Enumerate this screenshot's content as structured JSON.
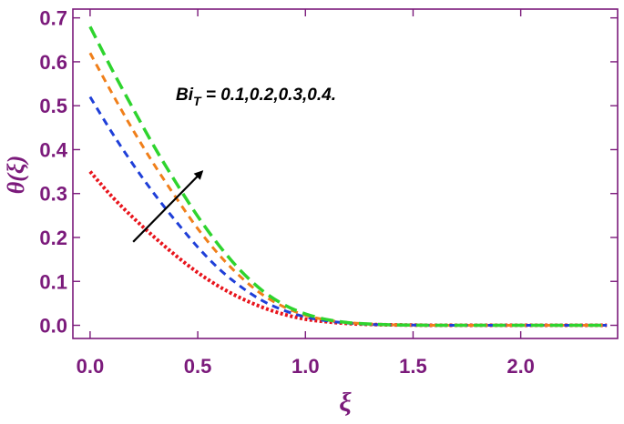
{
  "chart_data": {
    "type": "line",
    "xlabel": "ξ",
    "ylabel": "θ(ξ)",
    "xlim": [
      -0.08,
      2.45
    ],
    "ylim": [
      -0.03,
      0.72
    ],
    "x_ticks": [
      "0.0",
      "0.5",
      "1.0",
      "1.5",
      "2.0"
    ],
    "x_tick_values": [
      0,
      0.5,
      1.0,
      1.5,
      2.0
    ],
    "y_ticks": [
      "0.0",
      "0.1",
      "0.2",
      "0.3",
      "0.4",
      "0.5",
      "0.6",
      "0.7"
    ],
    "y_tick_values": [
      0,
      0.1,
      0.2,
      0.3,
      0.4,
      0.5,
      0.6,
      0.7
    ],
    "grid": false,
    "annotation": {
      "parameter": "Bi",
      "subscript": "T",
      "values_text": " = 0.1,0.2,0.3,0.4."
    },
    "arrow": {
      "from": [
        0.2,
        0.19
      ],
      "to": [
        0.52,
        0.35
      ]
    },
    "x": [
      0,
      0.1,
      0.2,
      0.3,
      0.4,
      0.5,
      0.6,
      0.7,
      0.8,
      0.9,
      1.0,
      1.1,
      1.2,
      1.3,
      1.4,
      1.5,
      1.6,
      1.8,
      2.0,
      2.2,
      2.4
    ],
    "series": [
      {
        "color": "#e8141c",
        "style": "dotted",
        "values": [
          0.35,
          0.294,
          0.245,
          0.2,
          0.158,
          0.12,
          0.088,
          0.062,
          0.041,
          0.025,
          0.014,
          0.008,
          0.004,
          0.002,
          0.001,
          0.0005,
          0,
          0,
          0,
          0,
          0
        ]
      },
      {
        "color": "#1f3fd8",
        "style": "dashed",
        "values": [
          0.52,
          0.44,
          0.366,
          0.298,
          0.236,
          0.178,
          0.128,
          0.088,
          0.056,
          0.034,
          0.019,
          0.01,
          0.005,
          0.002,
          0.001,
          0.0005,
          0,
          0,
          0,
          0,
          0
        ]
      },
      {
        "color": "#f07f1a",
        "style": "dashed",
        "values": [
          0.62,
          0.53,
          0.444,
          0.364,
          0.29,
          0.22,
          0.16,
          0.11,
          0.07,
          0.042,
          0.023,
          0.012,
          0.006,
          0.003,
          0.001,
          0.0005,
          0,
          0,
          0,
          0,
          0
        ]
      },
      {
        "color": "#2ed42e",
        "style": "dashed-long",
        "values": [
          0.68,
          0.584,
          0.493,
          0.405,
          0.324,
          0.248,
          0.181,
          0.124,
          0.079,
          0.047,
          0.026,
          0.013,
          0.006,
          0.003,
          0.001,
          0.0005,
          0,
          0,
          0,
          0,
          0
        ]
      }
    ]
  }
}
